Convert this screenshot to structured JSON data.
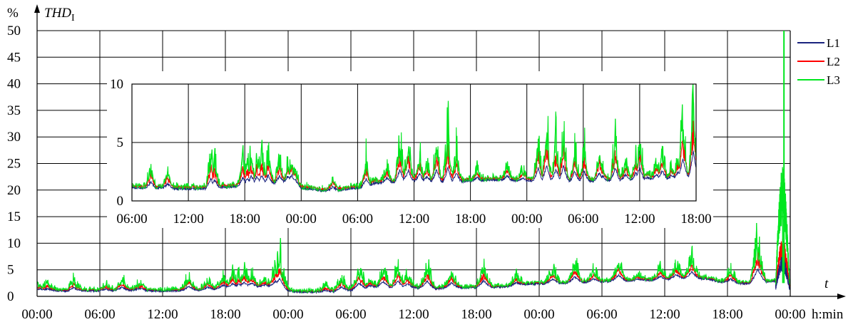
{
  "chart_data": [
    {
      "type": "line",
      "title": "THD",
      "title_subscript": "I",
      "ylabel": "%",
      "xlabel": "t",
      "x_unit": "h:min",
      "ylim": [
        0,
        50
      ],
      "yticks": [
        0,
        5,
        10,
        15,
        20,
        25,
        30,
        35,
        40,
        45,
        50
      ],
      "xlim_hours": [
        0,
        72
      ],
      "xticks_hours": [
        0,
        6,
        12,
        18,
        24,
        30,
        36,
        42,
        48,
        54,
        60,
        66,
        72
      ],
      "xtick_labels": [
        "00:00",
        "06:00",
        "12:00",
        "18:00",
        "00:00",
        "06:00",
        "12:00",
        "18:00",
        "00:00",
        "06:00",
        "12:00",
        "18:00",
        "00:00"
      ],
      "grid": true,
      "legend_position": "right",
      "series": [
        {
          "name": "L1",
          "color": "#1a237e"
        },
        {
          "name": "L2",
          "color": "#ff0000"
        },
        {
          "name": "L3",
          "color": "#00e61e"
        }
      ],
      "baseline_hours": [
        0,
        1,
        2,
        3,
        4,
        5,
        6,
        7,
        8,
        9,
        10,
        11,
        12,
        13,
        14,
        15,
        16,
        17,
        18,
        19,
        20,
        21,
        22,
        23,
        24,
        25,
        26,
        27,
        28,
        29,
        30,
        31,
        32,
        33,
        34,
        35,
        36,
        37,
        38,
        39,
        40,
        41,
        42,
        43,
        44,
        45,
        46,
        47,
        48,
        49,
        50,
        51,
        52,
        53,
        54,
        55,
        56,
        57,
        58,
        59,
        60,
        61,
        62,
        63,
        64,
        65,
        66,
        67,
        68,
        69,
        70,
        71,
        72
      ],
      "baseline_values": [
        1.3,
        1.2,
        1.2,
        1.1,
        1.2,
        1.2,
        1.2,
        1.2,
        1.3,
        1.3,
        1.3,
        1.2,
        1.2,
        1.2,
        1.2,
        1.3,
        1.4,
        1.5,
        1.7,
        1.8,
        1.9,
        1.9,
        2.0,
        1.7,
        1.2,
        1.0,
        1.0,
        1.0,
        1.0,
        1.1,
        1.3,
        1.5,
        1.8,
        1.9,
        1.7,
        1.7,
        1.8,
        1.7,
        1.6,
        1.7,
        1.8,
        1.8,
        1.8,
        1.8,
        1.9,
        2.0,
        2.3,
        2.5,
        2.5,
        2.6,
        2.6,
        2.7,
        2.8,
        2.8,
        2.9,
        3.0,
        3.0,
        3.1,
        3.2,
        3.2,
        3.3,
        3.4,
        3.5,
        3.5,
        3.5,
        3.0,
        2.7,
        2.6,
        2.6,
        2.6,
        3.0,
        3.0,
        3.0
      ],
      "peak_hours": [
        0.3,
        1.0,
        3.5,
        6.6,
        8.1,
        9.8,
        14.5,
        16.3,
        17.8,
        18.7,
        19.3,
        19.8,
        20.5,
        21.8,
        22.8,
        23.2,
        27.6,
        29.1,
        30.8,
        31.8,
        33.1,
        34.5,
        35.4,
        37.3,
        39.6,
        42.7,
        45.8,
        49.3,
        51.4,
        53.2,
        55.6,
        57.5,
        59.6,
        61.1,
        62.6,
        66.3,
        68.9
      ],
      "peak_values": [
        2.3,
        2.5,
        3.2,
        2.2,
        3.0,
        2.5,
        3.7,
        2.8,
        3.5,
        4.0,
        3.8,
        4.5,
        4.2,
        3.2,
        5.5,
        7.4,
        2.0,
        3.6,
        5.0,
        3.1,
        5.0,
        5.5,
        4.0,
        5.5,
        4.6,
        5.8,
        3.8,
        5.0,
        6.0,
        4.8,
        6.5,
        4.0,
        5.2,
        6.0,
        7.2,
        5.0,
        10.5
      ],
      "l3_spike": {
        "hour": 71.4,
        "value": 50
      },
      "end_burst": {
        "l2_peak": 11.0,
        "l3_peak": 24.5,
        "l3_secondary": 14.5
      }
    },
    {
      "type": "line",
      "role": "inset",
      "ylim": [
        0,
        10
      ],
      "yticks": [
        0,
        5,
        10
      ],
      "xlim_hours": [
        6,
        66
      ],
      "xticks_hours": [
        6,
        12,
        18,
        24,
        30,
        36,
        42,
        48,
        54,
        60,
        66
      ],
      "xtick_labels": [
        "06:00",
        "12:00",
        "18:00",
        "00:00",
        "06:00",
        "12:00",
        "18:00",
        "00:00",
        "06:00",
        "12:00",
        "18:00"
      ],
      "grid": true,
      "peaks_hours": [
        8.0,
        9.8,
        14.4,
        14.8,
        17.8,
        18.3,
        18.7,
        19.3,
        19.8,
        20.5,
        21.7,
        22.6,
        23.0,
        23.4,
        27.4,
        30.9,
        31.9,
        33.1,
        34.5,
        35.2,
        35.4,
        36.6,
        37.4,
        38.4,
        39.6,
        40.5,
        42.7,
        45.9,
        47.6,
        49.2,
        50.1,
        51.1,
        51.9,
        53.1,
        54.1,
        55.7,
        56.1,
        57.4,
        58.5,
        59.6,
        60.0,
        60.8,
        61.8,
        62.4,
        63.4,
        64.1,
        64.6
      ],
      "peaks_values": [
        3.0,
        2.6,
        4.0,
        3.6,
        3.9,
        3.5,
        4.2,
        4.0,
        4.2,
        4.0,
        3.6,
        3.2,
        3.5,
        2.6,
        2.0,
        3.4,
        2.0,
        2.9,
        5.1,
        3.6,
        5.0,
        4.0,
        3.2,
        5.2,
        5.8,
        4.3,
        2.8,
        3.2,
        2.8,
        5.5,
        6.3,
        5.3,
        6.2,
        4.5,
        4.5,
        4.2,
        3.2,
        5.5,
        3.5,
        4.0,
        5.6,
        2.6,
        3.4,
        4.4,
        2.8,
        3.7,
        7.2
      ],
      "end_peak": {
        "hour": 65.7,
        "value": 9.4
      }
    }
  ],
  "legend": {
    "items": [
      "L1",
      "L2",
      "L3"
    ]
  }
}
